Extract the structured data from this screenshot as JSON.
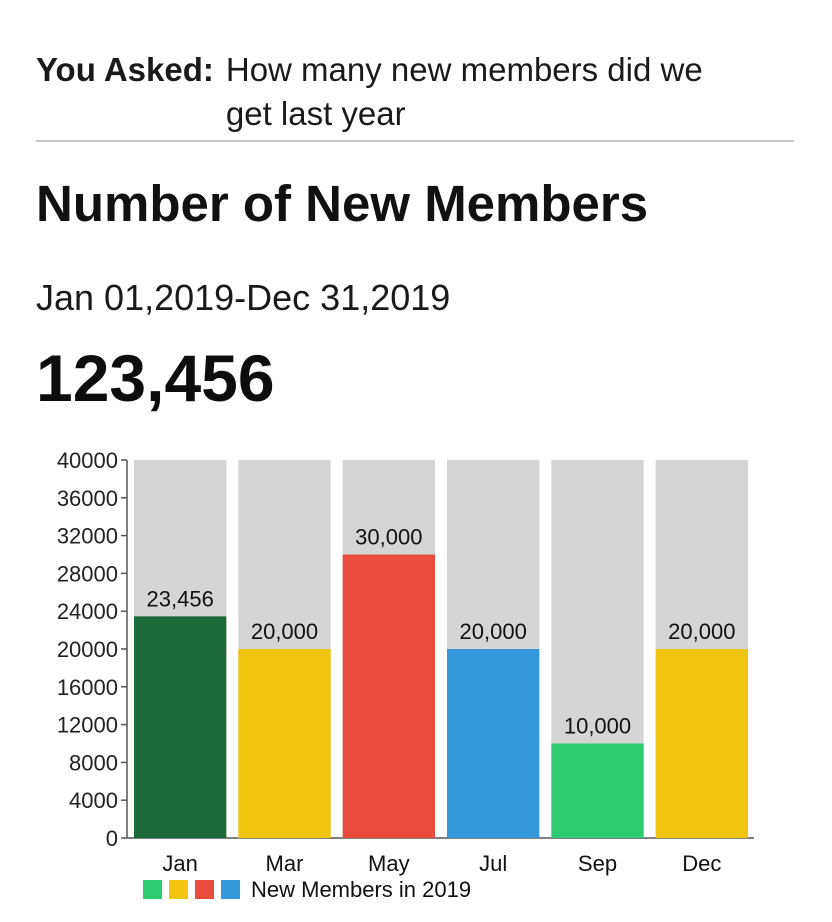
{
  "query": {
    "label": "You Asked:",
    "text": "How many new members did we get last year"
  },
  "title": "Number of New Members",
  "date_range": "Jan 01,2019-Dec 31,2019",
  "total": "123,456",
  "chart_data": {
    "type": "bar",
    "categories": [
      "Jan",
      "Mar",
      "May",
      "Jul",
      "Sep",
      "Dec"
    ],
    "values": [
      23456,
      20000,
      30000,
      20000,
      10000,
      20000
    ],
    "value_labels": [
      "23,456",
      "20,000",
      "30,000",
      "20,000",
      "10,000",
      "20,000"
    ],
    "bar_colors": [
      "#1e6b3a",
      "#f1c40f",
      "#e74c3c",
      "#3498db",
      "#2ecc71",
      "#f1c40f"
    ],
    "background_bar_color": "#d5d5d5",
    "ylim": [
      0,
      40000
    ],
    "yticks": [
      0,
      4000,
      8000,
      12000,
      16000,
      20000,
      24000,
      28000,
      32000,
      36000,
      40000
    ],
    "ytick_labels": [
      "0",
      "4000",
      "8000",
      "12000",
      "16000",
      "20000",
      "24000",
      "28000",
      "32000",
      "36000",
      "40000"
    ],
    "legend": {
      "label": "New Members in 2019",
      "swatches": [
        "#2ecc71",
        "#f1c40f",
        "#e74c3c",
        "#3498db"
      ],
      "position": "bottom"
    },
    "grid": false
  }
}
